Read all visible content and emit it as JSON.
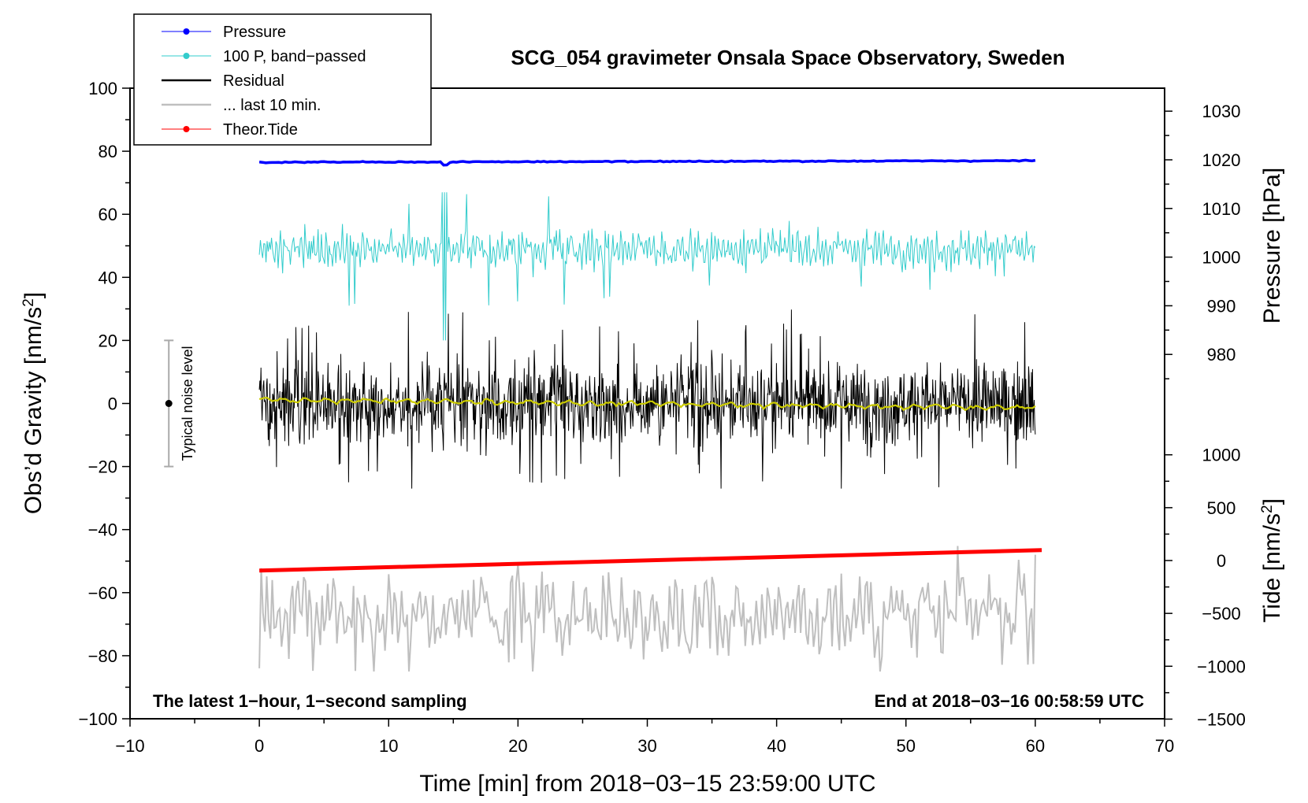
{
  "chart_data": {
    "type": "line",
    "title": "SCG_054 gravimeter Onsala Space Observatory, Sweden",
    "xlabel": "Time [min] from 2018−03−15 23:59:00 UTC",
    "ylabel": "Obs’d Gravity [nm/s",
    "ylabel_sup": "2",
    "ylabel_close": "]",
    "xlim": [
      -10,
      70
    ],
    "ylim": [
      -100,
      100
    ],
    "x_ticks": [
      -10,
      0,
      10,
      20,
      30,
      40,
      50,
      60,
      70
    ],
    "x_tick_labels": [
      "−10",
      "0",
      "10",
      "20",
      "30",
      "40",
      "50",
      "60",
      "70"
    ],
    "y_ticks": [
      100,
      80,
      60,
      40,
      20,
      0,
      -20,
      -40,
      -60,
      -80,
      -100
    ],
    "y_tick_labels": [
      "100",
      "80",
      "60",
      "40",
      "20",
      "0",
      "−20",
      "−40",
      "−60",
      "−80",
      "−100"
    ],
    "right_axis_pressure": {
      "label": "Pressure [hPa]",
      "ticks": [
        1030,
        1020,
        1010,
        1000,
        990,
        980
      ],
      "tick_labels": [
        "1030",
        "1020",
        "1010",
        "1000",
        "990",
        "980"
      ]
    },
    "right_axis_tide": {
      "label": "Tide [nm/s",
      "label_sup": "2",
      "label_close": "]",
      "ticks": [
        1000,
        500,
        0,
        -500,
        -1000,
        -1500
      ],
      "tick_labels": [
        "1000",
        "500",
        "0",
        "−500",
        "−1000",
        "−1500"
      ]
    },
    "series": [
      {
        "name": "Pressure",
        "color": "#0000ff",
        "level": 76.5,
        "end_level": 77,
        "spread": 0.5,
        "x_range": [
          0,
          60
        ]
      },
      {
        "name": "100 P, band−passed",
        "color": "#33cccc",
        "level": 49,
        "spread": 10,
        "x_range": [
          0,
          60
        ]
      },
      {
        "name": "Residual",
        "color": "#000000",
        "level": 0,
        "spread": 13,
        "x_range": [
          0,
          60
        ]
      },
      {
        "name": "... last 10 min.",
        "color": "#bfbfbf",
        "level": -67,
        "spread": 12,
        "x_range": [
          0,
          60
        ]
      },
      {
        "name": "Theor.Tide",
        "color": "#ff0000",
        "start": [
          0,
          -53
        ],
        "end": [
          60.5,
          -46.5
        ]
      }
    ],
    "smoothed_residual_color": "#cccc00",
    "noise_bar": {
      "label": "Typical noise level",
      "x": -7,
      "low": -20,
      "high": 20,
      "center": 0
    },
    "notes": {
      "left": "The latest 1−hour, 1−second sampling",
      "right": "End at 2018−03−16 00:58:59 UTC"
    },
    "legend": [
      "Pressure",
      "100 P, band−passed",
      "Residual",
      "... last 10 min.",
      "Theor.Tide"
    ]
  }
}
